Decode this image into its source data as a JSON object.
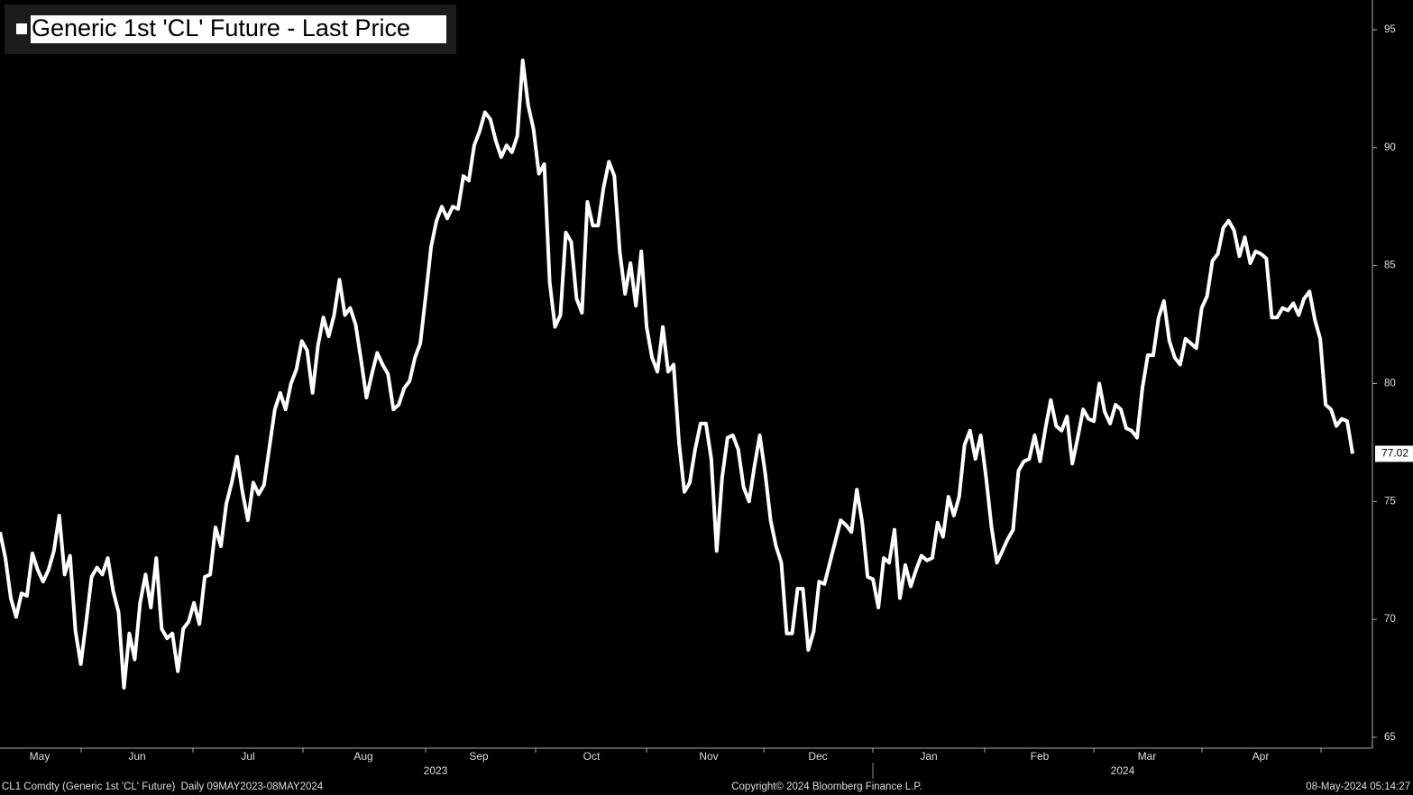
{
  "chart_data": {
    "type": "line",
    "series": [
      {
        "name": "Generic 1st 'CL' Future - Last Price",
        "color": "#ffffff",
        "values": [
          73.7,
          72.6,
          70.9,
          70.1,
          71.1,
          71.0,
          72.8,
          72.1,
          71.6,
          72.1,
          72.9,
          74.4,
          71.9,
          72.7,
          69.5,
          68.1,
          69.9,
          71.8,
          72.2,
          71.9,
          72.6,
          71.2,
          70.3,
          67.1,
          69.4,
          68.3,
          70.7,
          71.9,
          70.5,
          72.6,
          69.6,
          69.2,
          69.4,
          67.8,
          69.6,
          69.9,
          70.7,
          69.8,
          71.8,
          71.9,
          73.9,
          73.1,
          74.9,
          75.8,
          76.9,
          75.4,
          74.2,
          75.8,
          75.3,
          75.7,
          77.3,
          78.9,
          79.6,
          78.9,
          80.0,
          80.6,
          81.8,
          81.4,
          79.6,
          81.6,
          82.8,
          82.0,
          82.9,
          84.4,
          82.9,
          83.2,
          82.5,
          81.0,
          79.4,
          80.4,
          81.3,
          80.8,
          80.4,
          78.9,
          79.1,
          79.8,
          80.1,
          81.1,
          81.7,
          83.7,
          85.8,
          86.9,
          87.5,
          87.0,
          87.5,
          87.4,
          88.8,
          88.6,
          90.1,
          90.7,
          91.5,
          91.2,
          90.3,
          89.6,
          90.1,
          89.8,
          90.5,
          93.7,
          91.8,
          90.8,
          88.9,
          89.3,
          84.3,
          82.4,
          82.9,
          86.4,
          86.0,
          83.6,
          83.0,
          87.7,
          86.7,
          86.7,
          88.3,
          89.4,
          88.8,
          85.6,
          83.8,
          85.1,
          83.3,
          85.6,
          82.4,
          81.1,
          80.5,
          82.4,
          80.5,
          80.8,
          77.5,
          75.4,
          75.8,
          77.2,
          78.3,
          78.3,
          76.8,
          72.9,
          76.0,
          77.7,
          77.8,
          77.2,
          75.6,
          75.0,
          76.5,
          77.8,
          76.2,
          74.2,
          73.1,
          72.4,
          69.4,
          69.4,
          71.3,
          71.3,
          68.7,
          69.5,
          71.6,
          71.5,
          72.4,
          73.3,
          74.2,
          74.0,
          73.7,
          75.5,
          74.1,
          71.8,
          71.7,
          70.5,
          72.6,
          72.4,
          73.8,
          70.9,
          72.3,
          71.4,
          72.1,
          72.7,
          72.5,
          72.6,
          74.1,
          73.5,
          75.2,
          74.4,
          75.2,
          77.4,
          78.0,
          76.8,
          77.8,
          76.0,
          73.9,
          72.4,
          72.9,
          73.4,
          73.8,
          76.3,
          76.7,
          76.8,
          77.8,
          76.7,
          78.1,
          79.3,
          78.2,
          78.0,
          78.6,
          76.6,
          77.7,
          78.9,
          78.5,
          78.4,
          80.0,
          78.8,
          78.3,
          79.1,
          78.9,
          78.1,
          78.0,
          77.7,
          79.8,
          81.2,
          81.2,
          82.8,
          83.5,
          81.8,
          81.1,
          80.8,
          81.9,
          81.7,
          81.5,
          83.2,
          83.7,
          85.2,
          85.5,
          86.6,
          86.9,
          86.5,
          85.4,
          86.2,
          85.1,
          85.6,
          85.5,
          85.3,
          82.8,
          82.8,
          83.2,
          83.1,
          83.4,
          82.9,
          83.6,
          83.9,
          82.7,
          81.9,
          79.1,
          78.9,
          78.2,
          78.5,
          78.4,
          77.02
        ]
      }
    ],
    "ylim": [
      64.54,
      96.26
    ],
    "yticks": [
      65,
      70,
      75,
      80,
      85,
      90,
      95
    ],
    "months": [
      "May",
      "Jun",
      "Jul",
      "Aug",
      "Sep",
      "Oct",
      "Nov",
      "Dec",
      "Jan",
      "Feb",
      "Mar",
      "Apr"
    ],
    "years": [
      "2023",
      "2024"
    ]
  },
  "footer": {
    "left": "CL1 Comdty (Generic 1st 'CL' Future)  Daily 09MAY2023-08MAY2024",
    "center": "Copyright© 2024 Bloomberg Finance L.P.",
    "right": "08-May-2024 05:14:27"
  }
}
